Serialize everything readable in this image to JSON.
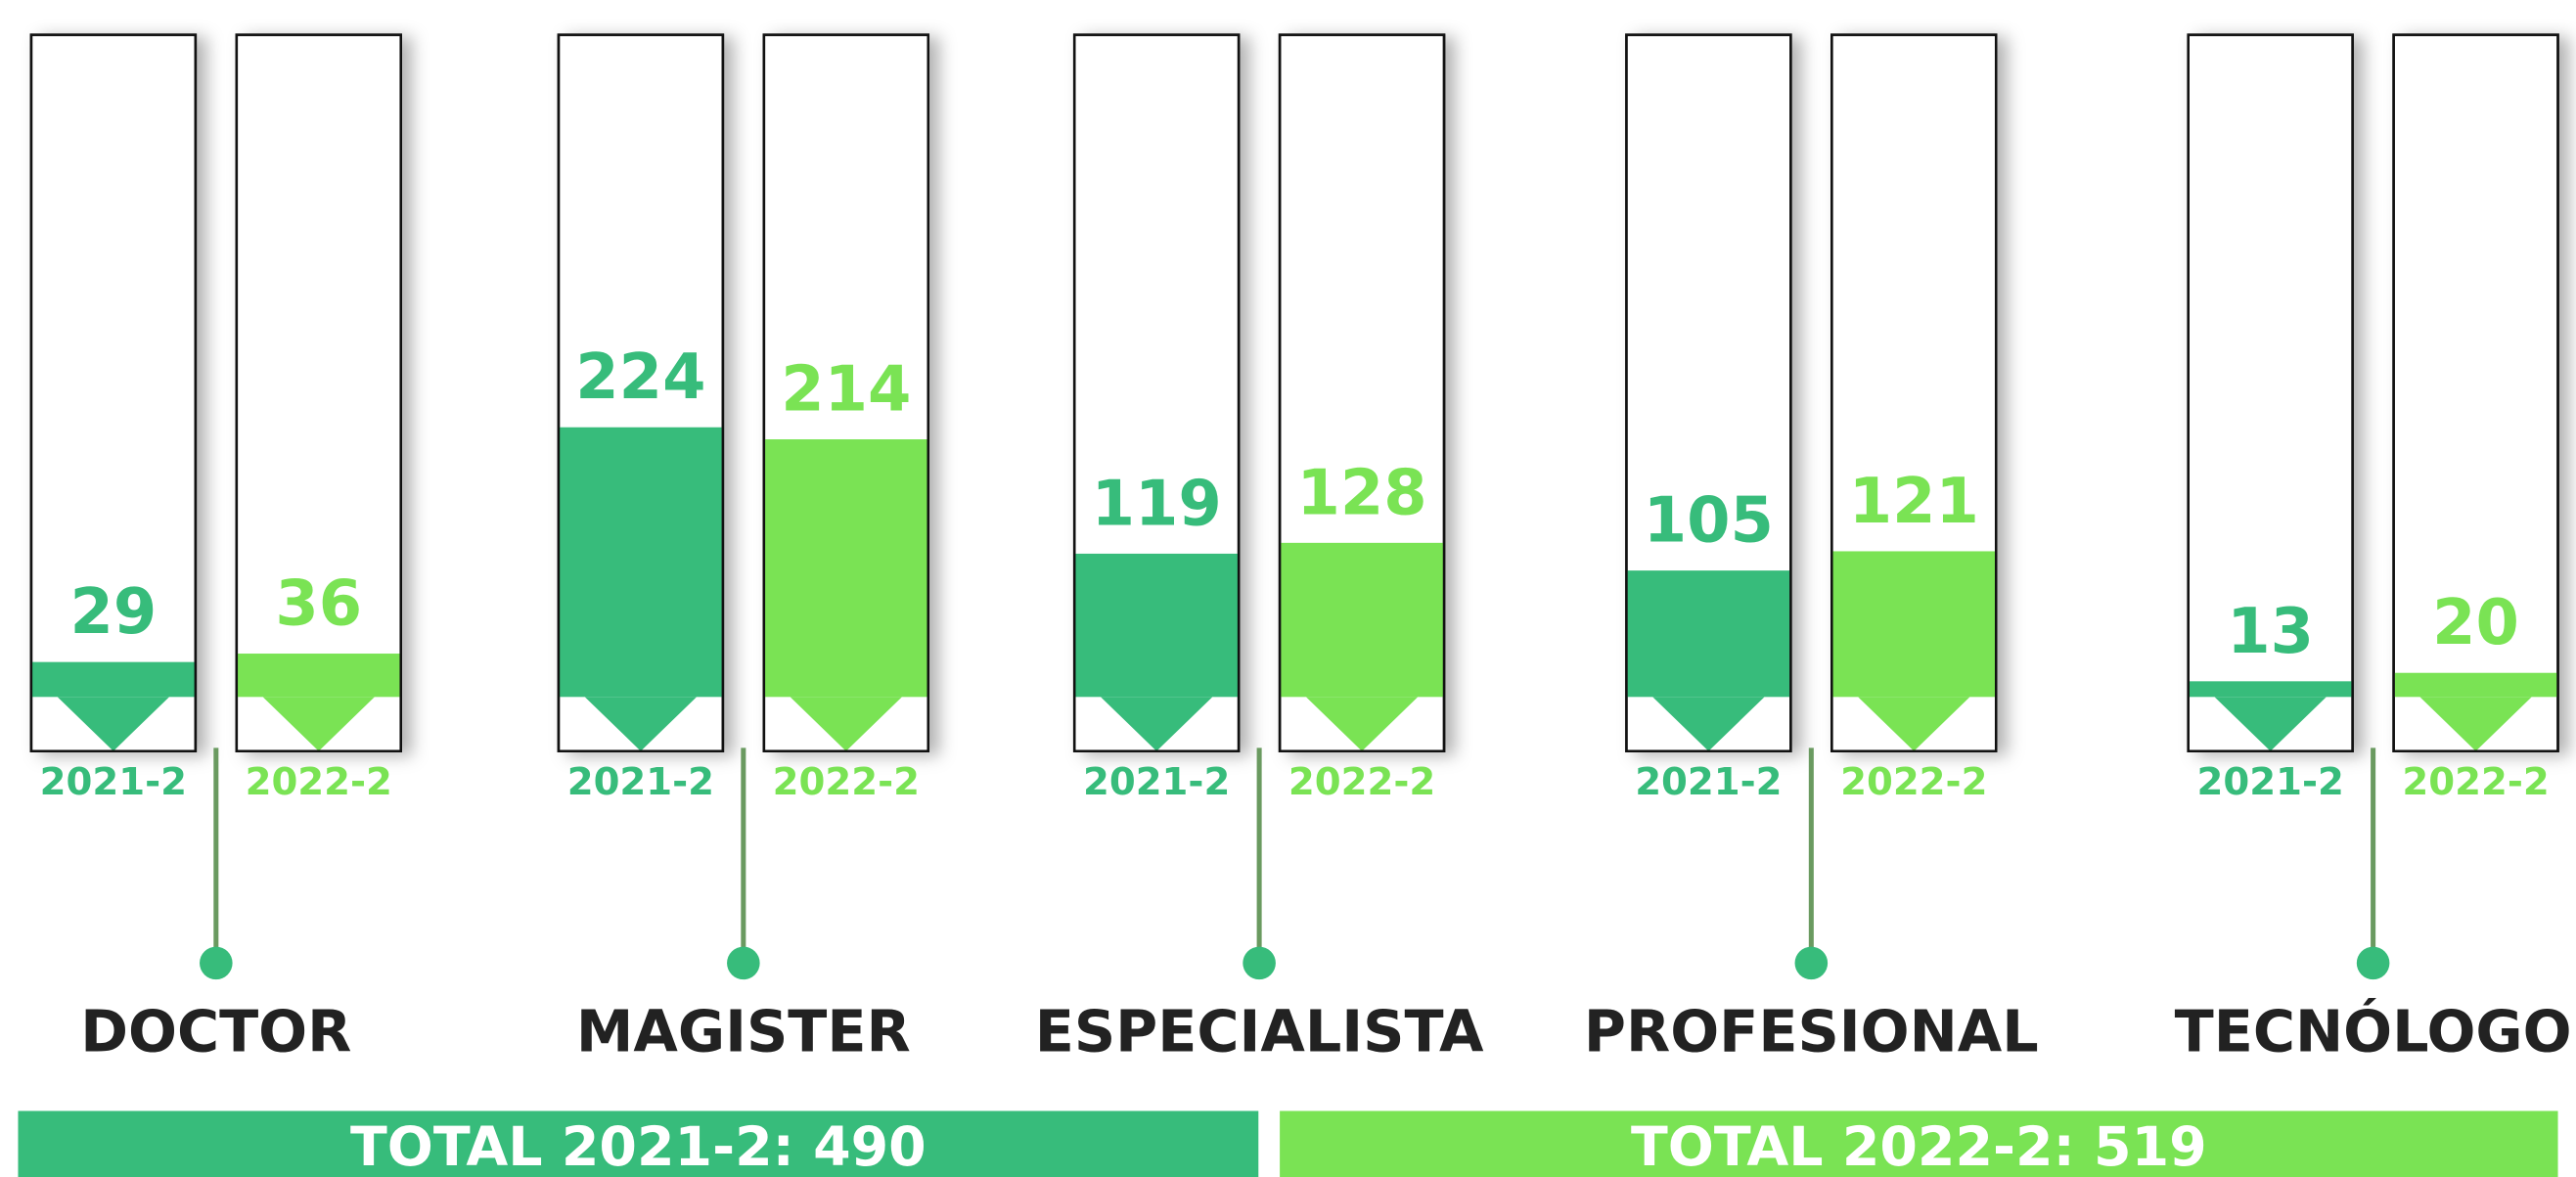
{
  "chart_data": {
    "type": "bar",
    "categories": [
      "DOCTOR",
      "MAGISTER",
      "ESPECIALISTA",
      "PROFESIONAL",
      "TECNÓLOGO"
    ],
    "series": [
      {
        "name": "2021-2",
        "color": "#37bc7b",
        "values": [
          29,
          224,
          119,
          105,
          13
        ]
      },
      {
        "name": "2022-2",
        "color": "#7ae354",
        "values": [
          36,
          214,
          128,
          121,
          20
        ]
      }
    ],
    "ylim": [
      0,
      550
    ],
    "totals": [
      "TOTAL 2021-2: 490",
      "TOTAL 2022-2: 519"
    ]
  }
}
